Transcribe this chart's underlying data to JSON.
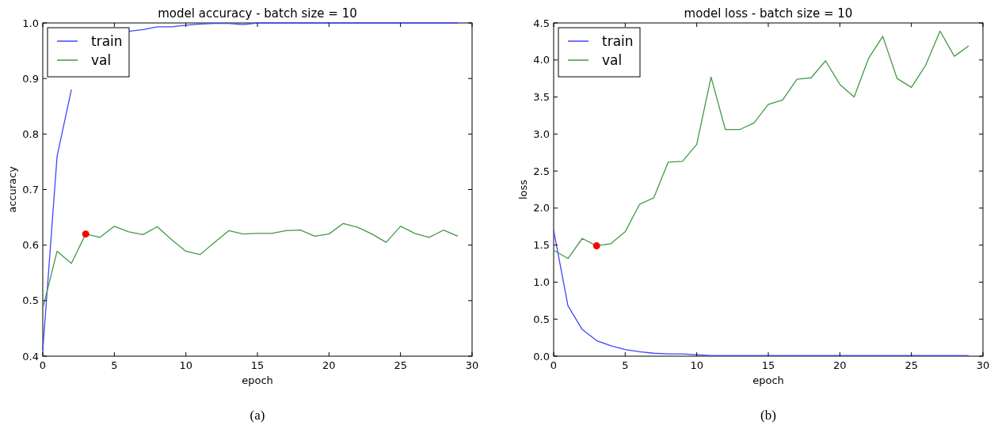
{
  "chart_data": [
    {
      "type": "line",
      "title": "model accuracy - batch size = 10",
      "xlabel": "epoch",
      "ylabel": "accuracy",
      "x": [
        0,
        1,
        2,
        3,
        4,
        5,
        6,
        7,
        8,
        9,
        10,
        11,
        12,
        13,
        14,
        15,
        16,
        17,
        18,
        19,
        20,
        21,
        22,
        23,
        24,
        25,
        26,
        27,
        28,
        29
      ],
      "series": [
        {
          "name": "train",
          "color": "#4444ff",
          "values": [
            0.41,
            0.76,
            0.88,
            null,
            null,
            null,
            0.985,
            0.988,
            0.993,
            0.993,
            0.996,
            0.998,
            0.999,
            0.999,
            0.997,
            1.0,
            1.0,
            1.0,
            1.0,
            1.0,
            1.0,
            1.0,
            1.0,
            1.0,
            1.0,
            1.0,
            1.0,
            1.0,
            1.0,
            1.0
          ]
        },
        {
          "name": "val",
          "color": "#449944",
          "values": [
            0.486,
            0.589,
            0.567,
            0.62,
            0.614,
            0.634,
            0.624,
            0.619,
            0.633,
            0.61,
            0.589,
            0.583,
            0.605,
            0.626,
            0.62,
            0.621,
            0.621,
            0.626,
            0.627,
            0.616,
            0.62,
            0.639,
            0.632,
            0.62,
            0.605,
            0.634,
            0.621,
            0.614,
            0.627,
            0.616
          ]
        },
        {
          "type": "scatter",
          "color": "#ff0000",
          "marker": "circle",
          "x": [
            3
          ],
          "values": [
            0.62
          ]
        }
      ],
      "xlim": [
        0,
        30
      ],
      "xticks": [
        0,
        5,
        10,
        15,
        20,
        25,
        30
      ],
      "ylim": [
        0.4,
        1.0
      ],
      "yticks": [
        0.4,
        0.5,
        0.6,
        0.7,
        0.8,
        0.9,
        {
          "value": 1.0,
          "label": "1.0"
        }
      ],
      "grid": false,
      "legend": "top left",
      "annotations": [
        "(a)"
      ]
    },
    {
      "type": "line",
      "title": "model loss - batch size = 10",
      "xlabel": "epoch",
      "ylabel": "loss",
      "x": [
        0,
        1,
        2,
        3,
        4,
        5,
        6,
        7,
        8,
        9,
        10,
        11,
        12,
        13,
        14,
        15,
        16,
        17,
        18,
        19,
        20,
        21,
        22,
        23,
        24,
        25,
        26,
        27,
        28,
        29
      ],
      "series": [
        {
          "name": "train",
          "color": "#4444ff",
          "values": [
            1.7,
            0.68,
            0.36,
            0.21,
            0.14,
            0.09,
            0.06,
            0.04,
            0.03,
            0.03,
            0.02,
            0.01,
            0.01,
            0.01,
            0.01,
            0.01,
            0.01,
            0.01,
            0.01,
            0.01,
            0.01,
            0.01,
            0.01,
            0.01,
            0.01,
            0.01,
            0.01,
            0.01,
            0.01,
            0.01
          ]
        },
        {
          "name": "val",
          "color": "#449944",
          "values": [
            1.43,
            1.32,
            1.59,
            1.49,
            1.52,
            1.68,
            2.05,
            2.14,
            2.62,
            2.63,
            2.86,
            3.77,
            3.06,
            3.06,
            3.15,
            3.4,
            3.46,
            3.74,
            3.76,
            3.99,
            3.67,
            3.5,
            4.02,
            4.32,
            3.75,
            3.63,
            3.93,
            4.39,
            4.05,
            4.19
          ]
        },
        {
          "type": "scatter",
          "color": "#ff0000",
          "marker": "circle",
          "x": [
            3
          ],
          "values": [
            1.49
          ]
        }
      ],
      "xlim": [
        0,
        30
      ],
      "xticks": [
        0,
        5,
        10,
        15,
        20,
        25,
        30
      ],
      "ylim": [
        0,
        4.5
      ],
      "yticks": [
        {
          "value": 0,
          "label": "0.0"
        },
        0.5,
        {
          "value": 1,
          "label": "1.0"
        },
        1.5,
        {
          "value": 2,
          "label": "2.0"
        },
        2.5,
        {
          "value": 3,
          "label": "3.0"
        },
        3.5,
        {
          "value": 4,
          "label": "4.0"
        },
        4.5
      ],
      "grid": false,
      "legend": "top left",
      "annotations": [
        "(b)"
      ]
    }
  ]
}
